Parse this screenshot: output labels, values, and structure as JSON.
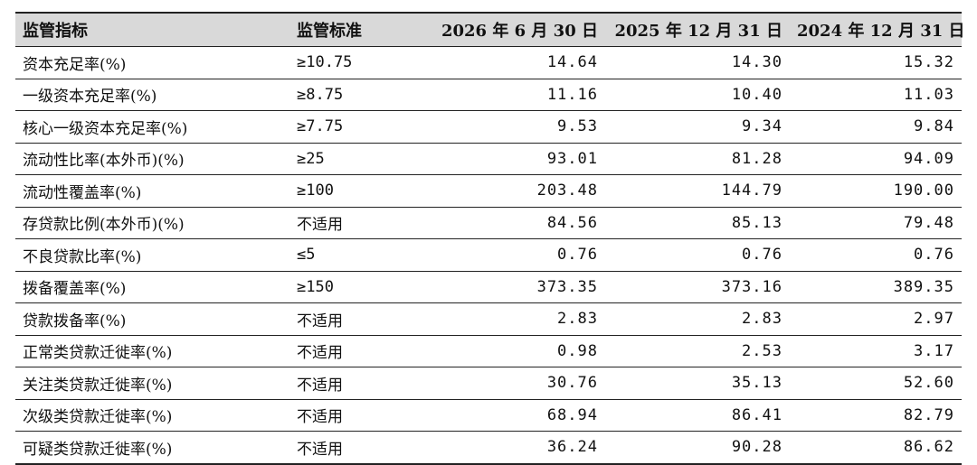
{
  "table": {
    "headers": [
      "监管指标",
      "监管标准",
      "2026 年 6 月 30 日",
      "2025 年 12 月 31 日",
      "2024 年 12 月 31 日"
    ],
    "rows": [
      [
        "资本充足率(%)",
        "≥10.75",
        "14.64",
        "14.30",
        "15.32"
      ],
      [
        "一级资本充足率(%)",
        "≥8.75",
        "11.16",
        "10.40",
        "11.03"
      ],
      [
        "核心一级资本充足率(%)",
        "≥7.75",
        "9.53",
        "9.34",
        "9.84"
      ],
      [
        "流动性比率(本外币)(%)",
        "≥25",
        "93.01",
        "81.28",
        "94.09"
      ],
      [
        "流动性覆盖率(%)",
        "≥100",
        "203.48",
        "144.79",
        "190.00"
      ],
      [
        "存贷款比例(本外币)(%)",
        "不适用",
        "84.56",
        "85.13",
        "79.48"
      ],
      [
        "不良贷款比率(%)",
        "≤5",
        "0.76",
        "0.76",
        "0.76"
      ],
      [
        "拨备覆盖率(%)",
        "≥150",
        "373.35",
        "373.16",
        "389.35"
      ],
      [
        "贷款拨备率(%)",
        "不适用",
        "2.83",
        "2.83",
        "2.97"
      ],
      [
        "正常类贷款迁徙率(%)",
        "不适用",
        "0.98",
        "2.53",
        "3.17"
      ],
      [
        "关注类贷款迁徙率(%)",
        "不适用",
        "30.76",
        "35.13",
        "52.60"
      ],
      [
        "次级类贷款迁徙率(%)",
        "不适用",
        "68.94",
        "86.41",
        "82.79"
      ],
      [
        "可疑类贷款迁徙率(%)",
        "不适用",
        "36.24",
        "90.28",
        "86.62"
      ]
    ]
  }
}
